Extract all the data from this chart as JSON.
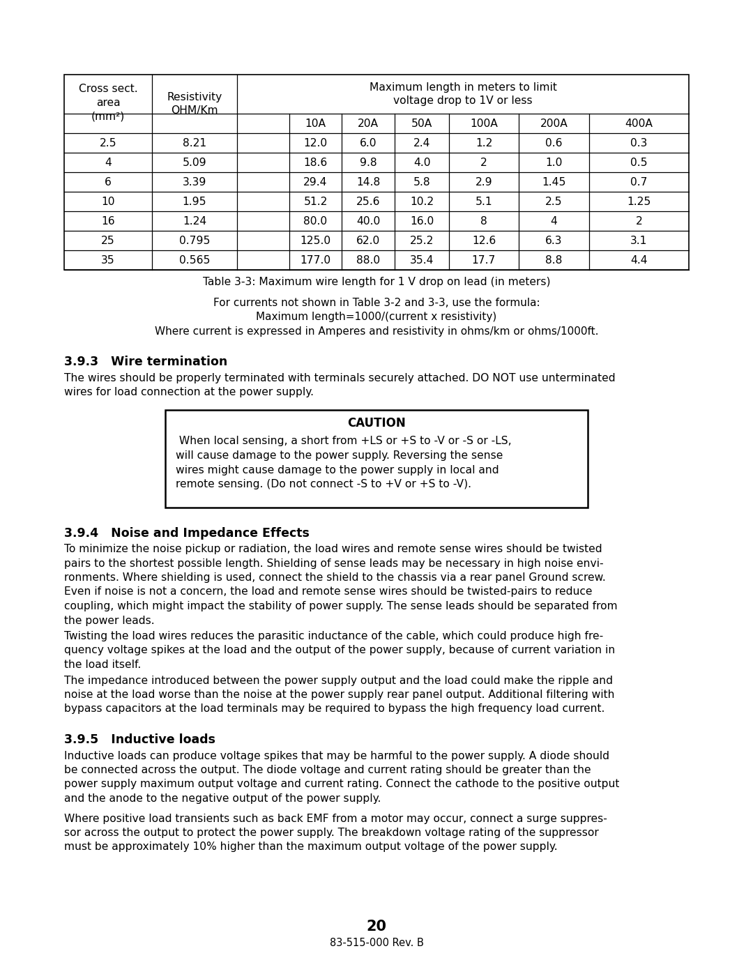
{
  "page_background": "#ffffff",
  "table": {
    "title": "Table 3-3: Maximum wire length for 1 V drop on lead (in meters)",
    "col_headers_row2": [
      "10A",
      "20A",
      "50A",
      "100A",
      "200A",
      "400A"
    ],
    "rows": [
      [
        "2.5",
        "8.21",
        "12.0",
        "6.0",
        "2.4",
        "1.2",
        "0.6",
        "0.3"
      ],
      [
        "4",
        "5.09",
        "18.6",
        "9.8",
        "4.0",
        "2",
        "1.0",
        "0.5"
      ],
      [
        "6",
        "3.39",
        "29.4",
        "14.8",
        "5.8",
        "2.9",
        "1.45",
        "0.7"
      ],
      [
        "10",
        "1.95",
        "51.2",
        "25.6",
        "10.2",
        "5.1",
        "2.5",
        "1.25"
      ],
      [
        "16",
        "1.24",
        "80.0",
        "40.0",
        "16.0",
        "8",
        "4",
        "2"
      ],
      [
        "25",
        "0.795",
        "125.0",
        "62.0",
        "25.2",
        "12.6",
        "6.3",
        "3.1"
      ],
      [
        "35",
        "0.565",
        "177.0",
        "88.0",
        "35.4",
        "17.7",
        "8.8",
        "4.4"
      ]
    ]
  },
  "formula_text": [
    "For currents not shown in Table 3-2 and 3-3, use the formula:",
    "Maximum length=1000/(current x resistivity)",
    "Where current is expressed in Amperes and resistivity in ohms/km or ohms/1000ft."
  ],
  "section_393": {
    "heading": "3.9.3   Wire termination",
    "body": "The wires should be properly terminated with terminals securely attached. DO NOT use unterminated wires for load connection at the power supply."
  },
  "caution_box": {
    "title": "CAUTION",
    "text": " When local sensing, a short from +LS or +S to -V or -S or -LS, will cause damage to the power supply. Reversing the sense wires might cause damage to the power supply in local and remote sensing. (Do not connect -S to +V or +S to -V)."
  },
  "section_394": {
    "heading": "3.9.4   Noise and Impedance Effects",
    "para1": "To minimize the noise pickup or radiation, the load wires and remote sense wires should be twisted pairs to the shortest possible length. Shielding of sense leads may be necessary in high noise environments. Where shielding is used, connect the shield to the chassis via a rear panel Ground screw. Even if noise is not a concern, the load and remote sense wires should be twisted-pairs to reduce coupling, which might impact the stability of power supply. The sense leads should be separated from the power leads.",
    "para2": "Twisting the load wires reduces the parasitic inductance of the cable, which could produce high frequency voltage spikes at the load and the output of the power supply, because of current variation in the load itself.",
    "para3": "The impedance introduced between the power supply output and the load could make the ripple and noise at the load worse than the noise at the power supply rear panel output. Additional filtering with bypass capacitors at the load terminals may be required to bypass the high frequency load current."
  },
  "section_395": {
    "heading": "3.9.5   Inductive loads",
    "para1": "Inductive loads can produce voltage spikes that may be harmful to the power supply. A diode should be connected across the output. The diode voltage and current rating should be greater than the power supply maximum output voltage and current rating. Connect the cathode to the positive output and the anode to the negative output of the power supply.",
    "para2": "Where positive load transients such as back EMF from a motor may occur, connect a surge suppressor across the output to protect the power supply. The breakdown voltage rating of the suppressor must be approximately 10% higher than the maximum output voltage of the power supply."
  },
  "page_number": "20",
  "footer": "83-515-000 Rev. B"
}
